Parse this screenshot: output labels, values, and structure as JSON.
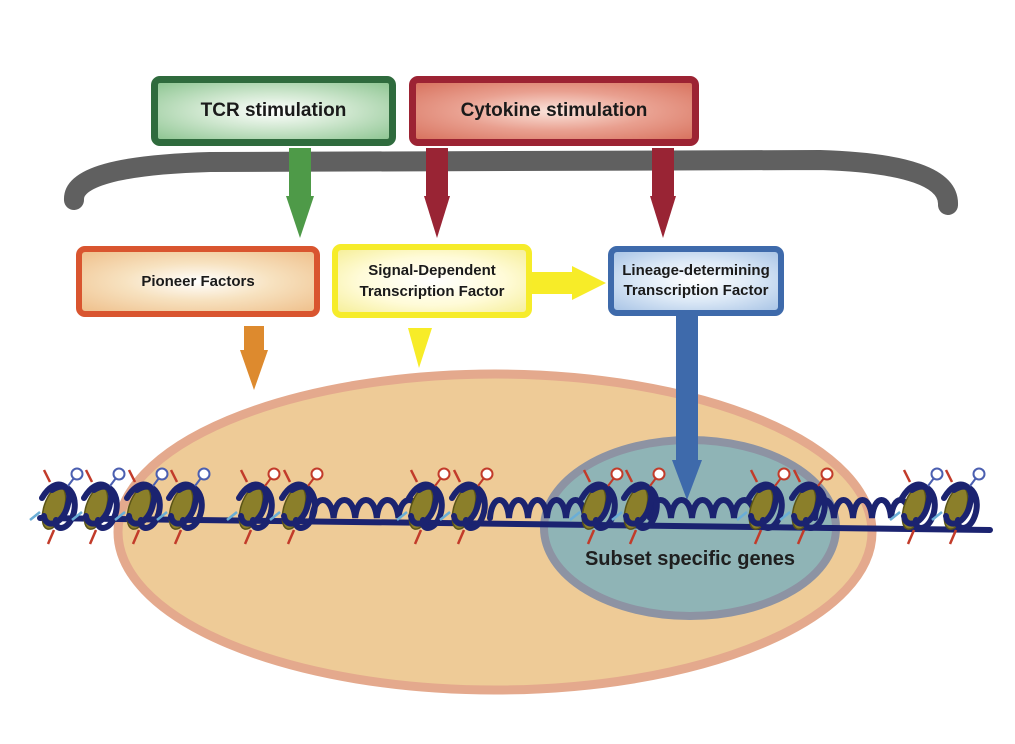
{
  "stimuli": {
    "tcr": "TCR stimulation",
    "cytokine": "Cytokine stimulation"
  },
  "factors": {
    "pioneer": "Pioneer Factors",
    "signal_dependent": "Signal-Dependent\nTranscription Factor",
    "lineage_determining": "Lineage-determining\nTranscription Factor"
  },
  "nucleus": {
    "region_label": "Subset specific genes"
  },
  "colors": {
    "tcr": "#2f6b3d",
    "cytokine": "#9c2333",
    "pioneer": "#d9552f",
    "signal": "#f6ec2a",
    "lineage": "#3e6aab",
    "membrane": "#606060",
    "nucleus_fill": "#eecb97",
    "nucleus_border": "#e4a98d",
    "gene_region": "#8fb4b6",
    "dna": "#1b2370",
    "histone": "#8b7f2a"
  }
}
